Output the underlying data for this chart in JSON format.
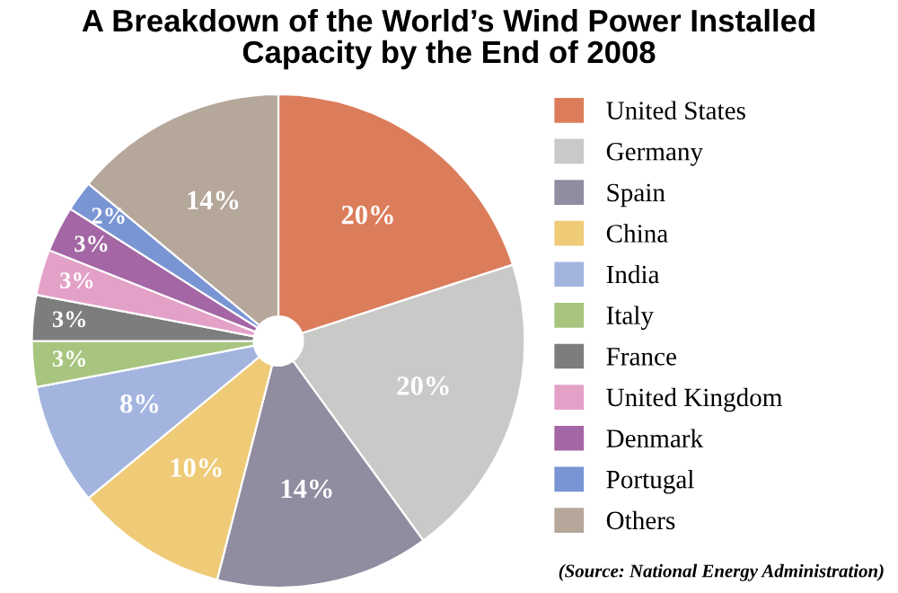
{
  "chart_data": {
    "type": "pie",
    "title": "A Breakdown of the World’s Wind Power Installed\nCapacity by the End of 2008",
    "categories": [
      "United States",
      "Germany",
      "Spain",
      "China",
      "India",
      "Italy",
      "France",
      "United Kingdom",
      "Denmark",
      "Portugal",
      "Others"
    ],
    "values": [
      20,
      20,
      14,
      10,
      8,
      3,
      3,
      3,
      3,
      2,
      14
    ],
    "value_labels": [
      "20%",
      "20%",
      "14%",
      "10%",
      "8%",
      "3%",
      "3%",
      "3%",
      "3%",
      "2%",
      "14%"
    ],
    "colors": [
      "#db7d5b",
      "#c9cac8",
      "#918ca0",
      "#efcb78",
      "#a3b4df",
      "#a7c57f",
      "#7d7d7d",
      "#e3a1c8",
      "#a466a4",
      "#7a95d4",
      "#b6a79b"
    ],
    "legend": "right",
    "annotations": [
      "(Source: National Energy Administration)"
    ]
  }
}
